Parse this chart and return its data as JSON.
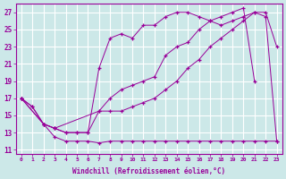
{
  "background_color": "#cce8e8",
  "line_color": "#990099",
  "grid_color": "#ffffff",
  "xlabel": "Windchill (Refroidissement éolien,°C)",
  "xlim": [
    -0.5,
    23.5
  ],
  "ylim": [
    10.5,
    28
  ],
  "xticks": [
    0,
    1,
    2,
    3,
    4,
    5,
    6,
    7,
    8,
    9,
    10,
    11,
    12,
    13,
    14,
    15,
    16,
    17,
    18,
    19,
    20,
    21,
    22,
    23
  ],
  "yticks": [
    11,
    13,
    15,
    17,
    19,
    21,
    23,
    25,
    27
  ],
  "series": [
    {
      "x": [
        0,
        1,
        2,
        3,
        4,
        5,
        6,
        7,
        8,
        9,
        10,
        11,
        12,
        13,
        14,
        15,
        16,
        17,
        18,
        19,
        20,
        21,
        22,
        23
      ],
      "y": [
        17,
        16,
        14,
        12.5,
        12,
        12,
        12,
        11.8,
        12,
        12,
        12,
        12,
        12,
        12,
        12,
        12,
        12,
        12,
        12,
        12,
        12,
        12,
        12,
        12
      ]
    },
    {
      "x": [
        0,
        2,
        3,
        7,
        8,
        9,
        10,
        11,
        12,
        13,
        14,
        15,
        16,
        17,
        18,
        19,
        20,
        21,
        22,
        23
      ],
      "y": [
        17,
        14,
        13.5,
        15.5,
        15.5,
        15.5,
        16,
        16.5,
        17,
        18,
        19,
        20.5,
        21.5,
        23,
        24,
        25,
        26,
        27,
        27,
        23
      ]
    },
    {
      "x": [
        0,
        1,
        2,
        3,
        4,
        5,
        6,
        7,
        8,
        9,
        10,
        11,
        12,
        13,
        14,
        15,
        16,
        17,
        18,
        19,
        20,
        21,
        22,
        23
      ],
      "y": [
        17,
        16,
        14,
        13.5,
        13,
        13,
        13,
        20.5,
        24,
        24.5,
        24,
        25.5,
        25.5,
        26.5,
        27,
        27,
        26.5,
        26,
        25.5,
        26,
        26.5,
        27,
        26.5,
        12
      ]
    },
    {
      "x": [
        0,
        2,
        3,
        4,
        5,
        6,
        7,
        8,
        9,
        10,
        11,
        12,
        13,
        14,
        15,
        16,
        17,
        18,
        19,
        20,
        21
      ],
      "y": [
        17,
        14,
        13.5,
        13,
        13,
        13,
        15.5,
        17,
        18,
        18.5,
        19,
        19.5,
        22,
        23,
        23.5,
        25,
        26,
        26.5,
        27,
        27.5,
        19
      ]
    }
  ]
}
